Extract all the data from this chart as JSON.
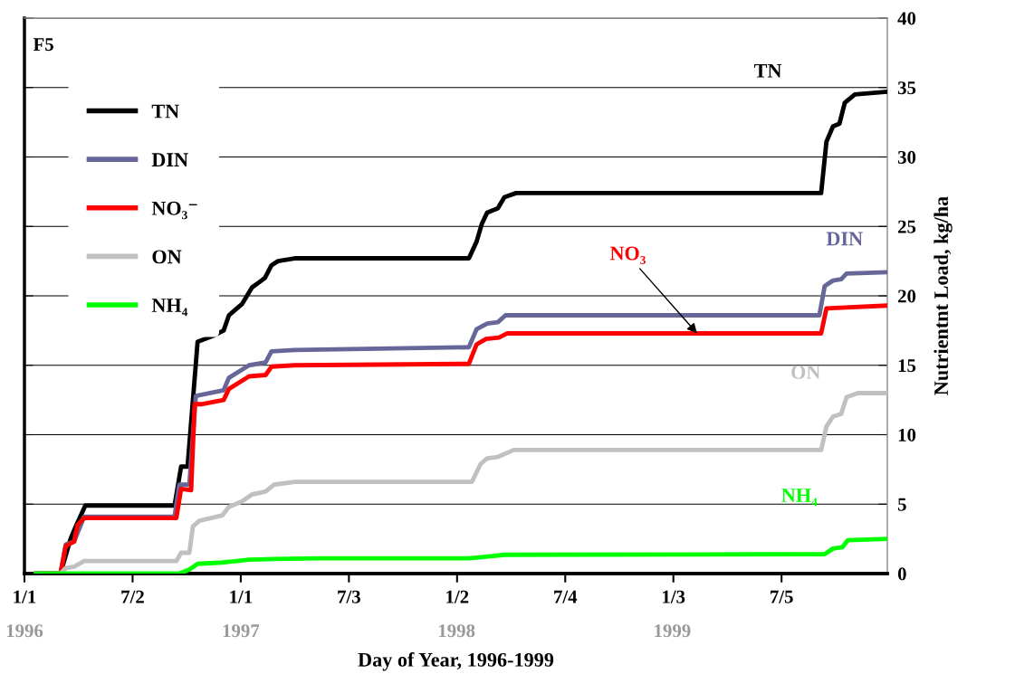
{
  "chart_data": {
    "type": "line",
    "xlabel": "Day of Year, 1996-1999",
    "ylabel": "Nutrientnt Load, kg/ha",
    "xlim": [
      "1996-01-01",
      "1999-12-31"
    ],
    "xticks": [
      {
        "value": "1996-01-01",
        "label": "1/1"
      },
      {
        "value": "1996-07-02",
        "label": "7/2"
      },
      {
        "value": "1997-01-01",
        "label": "1/1"
      },
      {
        "value": "1997-07-03",
        "label": "7/3"
      },
      {
        "value": "1998-01-02",
        "label": "1/2"
      },
      {
        "value": "1998-07-04",
        "label": "7/4"
      },
      {
        "value": "1999-01-03",
        "label": "1/3"
      },
      {
        "value": "1999-07-05",
        "label": "7/5"
      }
    ],
    "x2lim": [
      "1996-01-01",
      "1999-12-31"
    ],
    "x2ticks": [
      {
        "value": "1996",
        "label": "1996"
      },
      {
        "value": "1997",
        "label": "1997"
      },
      {
        "value": "1998",
        "label": "1998"
      },
      {
        "value": "1999",
        "label": "1999"
      }
    ],
    "ylim": [
      0,
      40
    ],
    "yticks": [
      0,
      5,
      10,
      15,
      20,
      25,
      30,
      35,
      40
    ],
    "grid": "y",
    "legend": "top left",
    "line_style": "solid",
    "series": [
      {
        "name": "TN",
        "color": "#000000",
        "x": [
          "1996-01-21",
          "1996-03-02",
          "1996-03-19",
          "1996-03-28",
          "1996-04-13",
          "1996-09-11",
          "1996-09-22",
          "1996-10-03",
          "1996-10-20",
          "1996-11-14",
          "1996-12-03",
          "1996-12-12",
          "1997-01-03",
          "1997-01-20",
          "1997-02-05",
          "1997-02-11",
          "1997-02-22",
          "1997-03-05",
          "1997-04-02",
          "1998-01-22",
          "1998-02-04",
          "1998-02-13",
          "1998-02-22",
          "1998-03-12",
          "1998-03-23",
          "1998-04-12",
          "1999-09-10",
          "1999-09-19",
          "1999-09-30",
          "1999-10-11",
          "1999-10-20",
          "1999-11-06",
          "1999-12-31"
        ],
        "values": [
          0,
          0,
          2.5,
          3.4,
          4.9,
          4.9,
          7.7,
          7.7,
          16.7,
          17.1,
          17.5,
          18.6,
          19.4,
          20.6,
          21.1,
          21.3,
          22.2,
          22.5,
          22.7,
          22.7,
          23.9,
          25.2,
          26,
          26.3,
          27.1,
          27.4,
          27.4,
          31.1,
          32.2,
          32.4,
          33.9,
          34.5,
          34.7
        ]
      },
      {
        "name": "DIN",
        "color": "#666699",
        "x": [
          "1996-01-21",
          "1996-03-02",
          "1996-03-11",
          "1996-03-25",
          "1996-04-11",
          "1996-09-11",
          "1996-09-19",
          "1996-10-06",
          "1996-10-17",
          "1996-12-03",
          "1996-12-12",
          "1997-01-15",
          "1997-02-12",
          "1997-02-22",
          "1997-04-02",
          "1998-01-22",
          "1998-02-04",
          "1998-02-22",
          "1998-03-12",
          "1998-03-25",
          "1999-09-07",
          "1999-09-16",
          "1999-09-30",
          "1999-10-14",
          "1999-10-23",
          "1999-12-31"
        ],
        "values": [
          0,
          0,
          2.1,
          2.3,
          4.1,
          4.1,
          6.4,
          6.4,
          12.8,
          13.2,
          14.1,
          15,
          15.2,
          16,
          16.1,
          16.3,
          17.6,
          18,
          18.1,
          18.6,
          18.6,
          20.7,
          21.1,
          21.2,
          21.6,
          21.7
        ]
      },
      {
        "name": "NO₃⁻",
        "color": "#ff0000",
        "x": [
          "1996-01-21",
          "1996-03-02",
          "1996-03-11",
          "1996-03-25",
          "1996-03-31",
          "1996-04-11",
          "1996-09-14",
          "1996-09-22",
          "1996-10-09",
          "1996-10-15",
          "1996-10-28",
          "1996-12-03",
          "1996-12-12",
          "1997-01-15",
          "1997-02-12",
          "1997-02-22",
          "1997-04-02",
          "1998-01-22",
          "1998-02-04",
          "1998-02-20",
          "1998-03-14",
          "1998-03-28",
          "1999-09-10",
          "1999-09-19",
          "1999-12-31"
        ],
        "values": [
          0,
          0,
          2,
          2.3,
          3.5,
          4,
          4,
          6.1,
          6,
          12.2,
          12.2,
          12.5,
          13.3,
          14.2,
          14.3,
          14.9,
          15,
          15.1,
          16.5,
          16.9,
          17,
          17.3,
          17.3,
          19.1,
          19.3
        ]
      },
      {
        "name": "ON",
        "color": "#c0c0c0",
        "x": [
          "1996-01-21",
          "1996-03-02",
          "1996-03-11",
          "1996-03-25",
          "1996-04-11",
          "1996-09-14",
          "1996-09-22",
          "1996-10-06",
          "1996-10-12",
          "1996-10-23",
          "1996-12-01",
          "1996-12-12",
          "1997-01-03",
          "1997-01-20",
          "1997-02-12",
          "1997-02-26",
          "1997-04-02",
          "1998-01-27",
          "1998-02-11",
          "1998-02-22",
          "1998-03-12",
          "1998-04-08",
          "1999-09-10",
          "1999-09-19",
          "1999-09-30",
          "1999-10-14",
          "1999-10-23",
          "1999-11-11",
          "1999-12-31"
        ],
        "values": [
          0,
          0,
          0.4,
          0.5,
          0.9,
          0.9,
          1.5,
          1.5,
          3.4,
          3.8,
          4.2,
          4.8,
          5.2,
          5.7,
          5.9,
          6.4,
          6.6,
          6.6,
          7.9,
          8.3,
          8.4,
          8.9,
          8.9,
          10.6,
          11.3,
          11.5,
          12.7,
          13,
          13
        ]
      },
      {
        "name": "NH₄",
        "color": "#00ff00",
        "x": [
          "1996-01-21",
          "1996-09-19",
          "1996-10-06",
          "1996-10-20",
          "1996-12-01",
          "1997-01-15",
          "1997-02-28",
          "1997-05-11",
          "1998-01-22",
          "1998-02-16",
          "1998-03-23",
          "1999-09-16",
          "1999-09-30",
          "1999-10-16",
          "1999-10-25",
          "1999-12-31"
        ],
        "values": [
          0,
          0,
          0.3,
          0.7,
          0.8,
          1,
          1.05,
          1.1,
          1.1,
          1.2,
          1.35,
          1.4,
          1.8,
          1.9,
          2.4,
          2.5
        ]
      }
    ],
    "annotations": [
      "TN",
      "DIN",
      {
        "text": "NO₃",
        "x": "1999-02-12",
        "y": 17.3
      },
      "ON",
      "NH₄",
      "F5"
    ]
  }
}
